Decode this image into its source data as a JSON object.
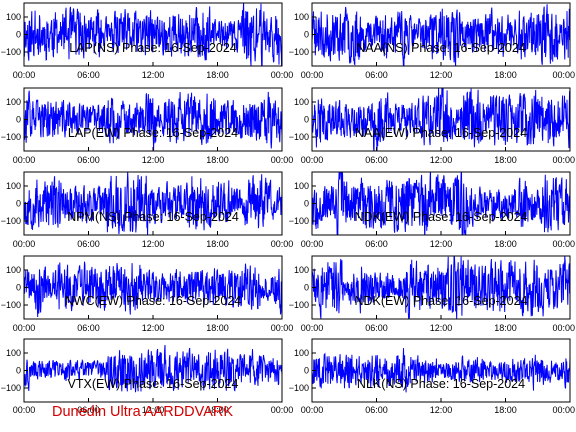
{
  "footer_label": "Dunedin Ultra AARDDVARK",
  "colors": {
    "trace": "#0000ff",
    "axes": "#000000",
    "footer": "#d40000"
  },
  "chart_data": [
    {
      "type": "line",
      "title": "LAP(NS) Phase: 16-Sep-2024",
      "seed": 11,
      "amp": 175,
      "xlim": [
        "00:00",
        "24:00"
      ],
      "ylim": [
        -180,
        180
      ],
      "xticks": [
        "00:00",
        "06:00",
        "12:00",
        "18:00",
        "00:00"
      ],
      "yticks": [
        100,
        0,
        -100
      ],
      "ytick_labels": [
        "100",
        "0",
        "−100"
      ]
    },
    {
      "type": "line",
      "title": "NAA(NS) Phase: 16-Sep-2024",
      "seed": 23,
      "amp": 185,
      "xlim": [
        "00:00",
        "24:00"
      ],
      "ylim": [
        -180,
        180
      ],
      "xticks": [
        "00:00",
        "06:00",
        "12:00",
        "18:00",
        "00:00"
      ],
      "yticks": [
        100,
        0,
        -100
      ],
      "ytick_labels": [
        "100",
        "0",
        "−100"
      ]
    },
    {
      "type": "line",
      "title": "LAP(EW) Phase: 16-Sep-2024",
      "seed": 37,
      "amp": 180,
      "xlim": [
        "00:00",
        "24:00"
      ],
      "ylim": [
        -180,
        180
      ],
      "xticks": [
        "00:00",
        "06:00",
        "12:00",
        "18:00",
        "00:00"
      ],
      "yticks": [
        100,
        0,
        -100
      ],
      "ytick_labels": [
        "100",
        "0",
        "−100"
      ]
    },
    {
      "type": "line",
      "title": "NAA(EW) Phase: 16-Sep-2024",
      "seed": 41,
      "amp": 185,
      "xlim": [
        "00:00",
        "24:00"
      ],
      "ylim": [
        -180,
        180
      ],
      "xticks": [
        "00:00",
        "06:00",
        "12:00",
        "18:00",
        "00:00"
      ],
      "yticks": [
        100,
        0,
        -100
      ],
      "ytick_labels": [
        "100",
        "0",
        "−100"
      ]
    },
    {
      "type": "line",
      "title": "NPM(NS) Phase: 16-Sep-2024",
      "seed": 53,
      "amp": 170,
      "xlim": [
        "00:00",
        "24:00"
      ],
      "ylim": [
        -180,
        180
      ],
      "xticks": [
        "00:00",
        "06:00",
        "12:00",
        "18:00",
        "00:00"
      ],
      "yticks": [
        100,
        0,
        -100
      ],
      "ytick_labels": [
        "100",
        "0",
        "−100"
      ]
    },
    {
      "type": "line",
      "title": "NDK(EW) Phase: 16-Sep-2024",
      "seed": 67,
      "amp": 180,
      "xlim": [
        "00:00",
        "24:00"
      ],
      "ylim": [
        -180,
        180
      ],
      "xticks": [
        "00:00",
        "06:00",
        "12:00",
        "18:00",
        "00:00"
      ],
      "yticks": [
        100,
        0,
        -100
      ],
      "ytick_labels": [
        "100",
        "0",
        "−100"
      ]
    },
    {
      "type": "line",
      "title": "NWC(EW) Phase: 16-Sep-2024",
      "seed": 71,
      "amp": 160,
      "xlim": [
        "00:00",
        "24:00"
      ],
      "ylim": [
        -180,
        180
      ],
      "xticks": [
        "00:00",
        "06:00",
        "12:00",
        "18:00",
        "00:00"
      ],
      "yticks": [
        100,
        0,
        -100
      ],
      "ytick_labels": [
        "100",
        "0",
        "−100"
      ]
    },
    {
      "type": "line",
      "title": "NDK(EW) Phase: 16-Sep-2024",
      "seed": 83,
      "amp": 180,
      "xlim": [
        "00:00",
        "24:00"
      ],
      "ylim": [
        -180,
        180
      ],
      "xticks": [
        "00:00",
        "06:00",
        "12:00",
        "18:00",
        "00:00"
      ],
      "yticks": [
        100,
        0,
        -100
      ],
      "ytick_labels": [
        "100",
        "0",
        "−100"
      ]
    },
    {
      "type": "line",
      "title": "VTX(EW) Phase: 16-Sep-2024",
      "seed": 97,
      "amp": 130,
      "xlim": [
        "00:00",
        "24:00"
      ],
      "ylim": [
        -180,
        180
      ],
      "xticks": [
        "00:00",
        "06:00",
        "12:00",
        "18:00",
        "00:00"
      ],
      "yticks": [
        100,
        0,
        -100
      ],
      "ytick_labels": [
        "100",
        "0",
        "−100"
      ]
    },
    {
      "type": "line",
      "title": "NLK(NS) Phase: 16-Sep-2024",
      "seed": 101,
      "amp": 120,
      "xlim": [
        "00:00",
        "24:00"
      ],
      "ylim": [
        -180,
        180
      ],
      "xticks": [
        "00:00",
        "06:00",
        "12:00",
        "18:00",
        "00:00"
      ],
      "yticks": [
        100,
        0,
        -100
      ],
      "ytick_labels": [
        "100",
        "0",
        "−100"
      ]
    }
  ]
}
